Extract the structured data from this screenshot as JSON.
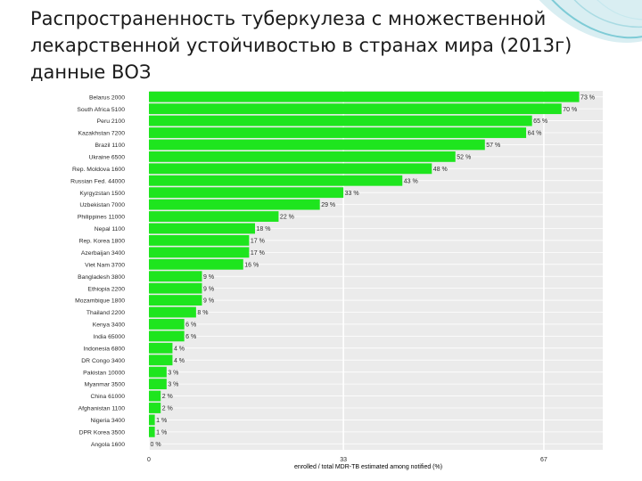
{
  "slide": {
    "title": "Распространенность туберкулеза с множественной лекарственной устойчивостью в странах мира (2013г) данные ВОЗ"
  },
  "colors": {
    "bar": "#1ee51e",
    "panel": "#ebebeb",
    "grid": "#ffffff",
    "text": "#2a2a2a",
    "accent": "#7ecbd6"
  },
  "chart_data": {
    "type": "bar",
    "orientation": "horizontal",
    "categories": [
      "Belarus 2000",
      "South Africa 5100",
      "Peru 2100",
      "Kazakhstan 7200",
      "Brazil 1100",
      "Ukraine 6500",
      "Rep. Moldova 1600",
      "Russian Fed. 44000",
      "Kyrgyzstan 1500",
      "Uzbekistan 7000",
      "Philippines 11000",
      "Nepal 1100",
      "Rep. Korea 1800",
      "Azerbaijan 3400",
      "Viet Nam 3700",
      "Bangladesh 3800",
      "Ethiopia 2200",
      "Mozambique 1800",
      "Thailand 2200",
      "Kenya 3400",
      "India 65000",
      "Indonesia 6800",
      "DR Congo 3400",
      "Pakistan 10000",
      "Myanmar 3500",
      "China 61000",
      "Afghanistan 1100",
      "Nigeria 3400",
      "DPR Korea 3500",
      "Angola 1600"
    ],
    "values": [
      73,
      70,
      65,
      64,
      57,
      52,
      48,
      43,
      33,
      29,
      22,
      18,
      17,
      17,
      16,
      9,
      9,
      9,
      8,
      6,
      6,
      4,
      4,
      3,
      3,
      2,
      2,
      1,
      1,
      0
    ],
    "value_labels": [
      "73 %",
      "70 %",
      "65 %",
      "64 %",
      "57 %",
      "52 %",
      "48 %",
      "43 %",
      "33 %",
      "29 %",
      "22 %",
      "18 %",
      "17 %",
      "17 %",
      "16 %",
      "9 %",
      "9 %",
      "9 %",
      "8 %",
      "6 %",
      "6 %",
      "4 %",
      "4 %",
      "3 %",
      "3 %",
      "2 %",
      "2 %",
      "1 %",
      "1 %",
      "0 %"
    ],
    "x_ticks": [
      0,
      33,
      67
    ],
    "x_tick_labels": [
      "0",
      "33",
      "67"
    ],
    "xlabel": "enrolled / total MDR-TB estimated among notified (%)",
    "ylabel": "",
    "xlim": [
      0,
      77
    ],
    "grid": true
  }
}
